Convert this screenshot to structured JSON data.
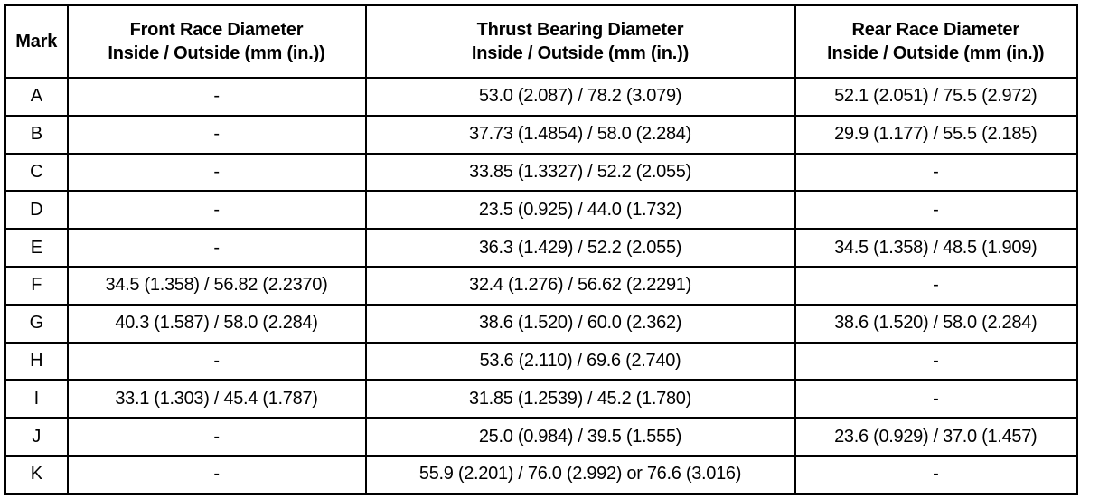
{
  "headers": [
    {
      "line1": "Mark",
      "line2": ""
    },
    {
      "line1": "Front Race Diameter",
      "line2": "Inside / Outside (mm (in.))"
    },
    {
      "line1": "Thrust Bearing Diameter",
      "line2": "Inside / Outside (mm (in.))"
    },
    {
      "line1": "Rear Race Diameter",
      "line2": "Inside / Outside (mm (in.))"
    }
  ],
  "rows": [
    [
      "A",
      "-",
      "53.0 (2.087) / 78.2 (3.079)",
      "52.1 (2.051) / 75.5 (2.972)"
    ],
    [
      "B",
      "-",
      "37.73 (1.4854) / 58.0 (2.284)",
      "29.9 (1.177) / 55.5 (2.185)"
    ],
    [
      "C",
      "-",
      "33.85 (1.3327) / 52.2 (2.055)",
      "-"
    ],
    [
      "D",
      "-",
      "23.5 (0.925) / 44.0 (1.732)",
      "-"
    ],
    [
      "E",
      "-",
      "36.3 (1.429) / 52.2 (2.055)",
      "34.5 (1.358) / 48.5 (1.909)"
    ],
    [
      "F",
      "34.5 (1.358) / 56.82 (2.2370)",
      "32.4 (1.276) / 56.62 (2.2291)",
      "-"
    ],
    [
      "G",
      "40.3 (1.587) / 58.0 (2.284)",
      "38.6 (1.520) / 60.0 (2.362)",
      "38.6 (1.520) / 58.0 (2.284)"
    ],
    [
      "H",
      "-",
      "53.6 (2.110) / 69.6 (2.740)",
      "-"
    ],
    [
      "I",
      "33.1 (1.303) / 45.4 (1.787)",
      "31.85 (1.2539) / 45.2 (1.780)",
      "-"
    ],
    [
      "J",
      "-",
      "25.0 (0.984) / 39.5 (1.555)",
      "23.6 (0.929) / 37.0 (1.457)"
    ],
    [
      "K",
      "-",
      "55.9 (2.201) / 76.0 (2.992) or 76.6 (3.016)",
      "-"
    ]
  ]
}
